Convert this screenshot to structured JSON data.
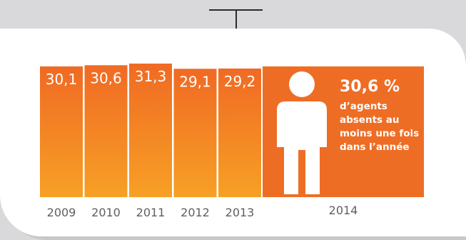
{
  "chart_data": {
    "type": "bar",
    "categories": [
      "2009",
      "2010",
      "2011",
      "2012",
      "2013"
    ],
    "values": [
      30.1,
      30.6,
      31.3,
      29.1,
      29.2
    ],
    "value_labels": [
      "30,1",
      "30,6",
      "31,3",
      "29,1",
      "29,2"
    ],
    "bar_color_top": "#f06a24",
    "bar_color_bottom": "#f7a025"
  },
  "highlight": {
    "year": "2014",
    "value_label": "30,6 %",
    "description": "d’agents absents au moins une fois dans l’année",
    "color": "#ee6d25",
    "icon": "person-icon"
  }
}
